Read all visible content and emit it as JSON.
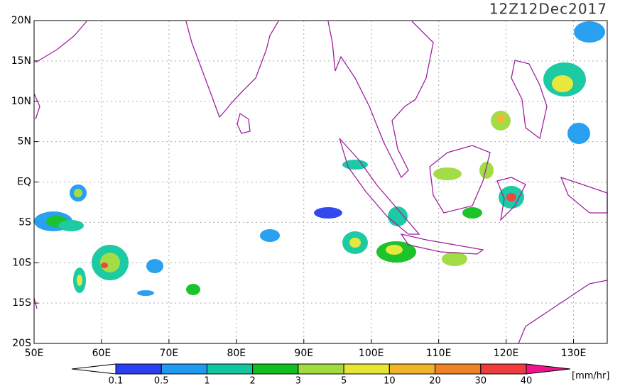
{
  "title": "12Z12Dec2017",
  "map": {
    "lon_range": [
      50,
      135
    ],
    "lat_range": [
      -20,
      20
    ],
    "lon_ticks": [
      {
        "value": 50,
        "label": "50E"
      },
      {
        "value": 60,
        "label": "60E"
      },
      {
        "value": 70,
        "label": "70E"
      },
      {
        "value": 80,
        "label": "80E"
      },
      {
        "value": 90,
        "label": "90E"
      },
      {
        "value": 100,
        "label": "100E"
      },
      {
        "value": 110,
        "label": "110E"
      },
      {
        "value": 120,
        "label": "120E"
      },
      {
        "value": 130,
        "label": "130E"
      }
    ],
    "lat_ticks": [
      {
        "value": 20,
        "label": "20N"
      },
      {
        "value": 15,
        "label": "15N"
      },
      {
        "value": 10,
        "label": "10N"
      },
      {
        "value": 5,
        "label": "5N"
      },
      {
        "value": 0,
        "label": "EQ"
      },
      {
        "value": -5,
        "label": "5S"
      },
      {
        "value": -10,
        "label": "10S"
      },
      {
        "value": -15,
        "label": "15S"
      },
      {
        "value": -20,
        "label": "20S"
      }
    ],
    "grid": true
  },
  "colorbar": {
    "levels": [
      0.1,
      0.5,
      1,
      2,
      3,
      5,
      10,
      20,
      30,
      40
    ],
    "colors": [
      "#2a3ff0",
      "#1e9bf0",
      "#10c8a0",
      "#10c020",
      "#9fdc3c",
      "#e6e632",
      "#f0b428",
      "#f08228",
      "#f03c3c"
    ],
    "under_color": "#ffffff",
    "over_color": "#f0148c",
    "unit": "[mm/hr]"
  }
}
